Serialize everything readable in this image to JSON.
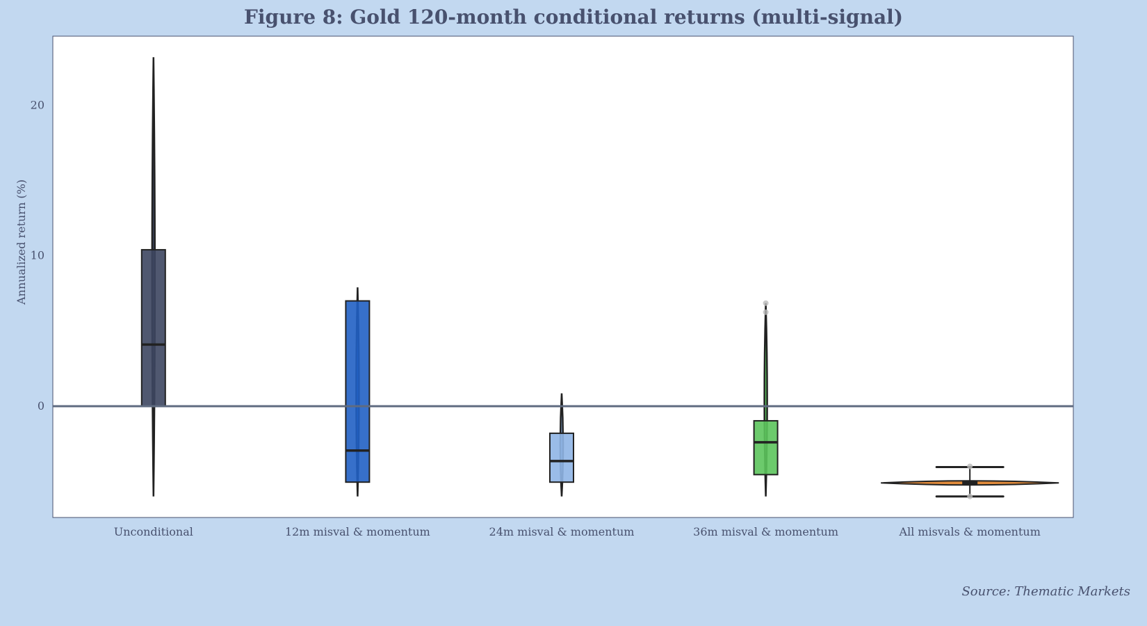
{
  "chart_data": {
    "type": "boxplot-violin",
    "title": "Figure 8: Gold 120-month conditional returns (multi-signal)",
    "xlabel": "",
    "ylabel": "Annualized return (%)",
    "ylim": [
      -7.4,
      24.6
    ],
    "yticks": [
      0,
      10,
      20
    ],
    "reference_line": 0,
    "source": "Source: Thematic Markets",
    "categories": [
      "Unconditional",
      "12m misval & momentum",
      "24m misval & momentum",
      "36m misval & momentum",
      "All misvals & momentum"
    ],
    "series": [
      {
        "name": "Unconditional",
        "color": "#3d4660",
        "min": -6.0,
        "q1": 0.0,
        "median": 4.1,
        "q3": 10.4,
        "max": 23.2,
        "outliers": []
      },
      {
        "name": "12m misval & momentum",
        "color": "#2160c4",
        "min": -6.0,
        "q1": -5.05,
        "median": -2.95,
        "q3": 7.0,
        "max": 7.9,
        "outliers": []
      },
      {
        "name": "24m misval & momentum",
        "color": "#8fb5e6",
        "min": -6.0,
        "q1": -5.05,
        "median": -3.65,
        "q3": -1.8,
        "max": 0.85,
        "outliers": []
      },
      {
        "name": "36m misval & momentum",
        "color": "#5cc45c",
        "min": -6.0,
        "q1": -4.55,
        "median": -2.4,
        "q3": -0.97,
        "max": 6.85,
        "outliers": [
          6.25,
          6.85
        ]
      },
      {
        "name": "All misvals & momentum",
        "color": "#e08a3a",
        "min": -6.0,
        "q1": -5.2,
        "median": -5.1,
        "q3": -5.0,
        "max": -4.05,
        "outliers": [
          -4.0,
          -6.0
        ]
      }
    ]
  }
}
